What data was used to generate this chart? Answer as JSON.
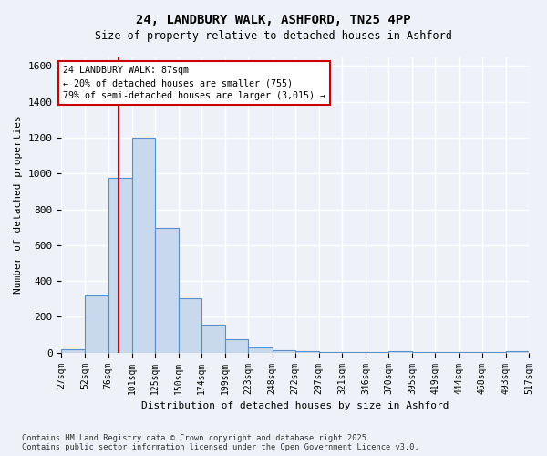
{
  "title_line1": "24, LANDBURY WALK, ASHFORD, TN25 4PP",
  "title_line2": "Size of property relative to detached houses in Ashford",
  "xlabel": "Distribution of detached houses by size in Ashford",
  "ylabel": "Number of detached properties",
  "bar_edges": [
    27,
    52,
    76,
    101,
    125,
    150,
    174,
    199,
    223,
    248,
    272,
    297,
    321,
    346,
    370,
    395,
    419,
    444,
    468,
    493,
    517
  ],
  "bar_heights": [
    20,
    320,
    975,
    1200,
    695,
    305,
    155,
    75,
    30,
    15,
    10,
    5,
    3,
    2,
    8,
    2,
    1,
    1,
    1,
    10
  ],
  "bar_color": "#c9d9ed",
  "bar_edge_color": "#5b8ec4",
  "red_line_x": 87,
  "annotation_text": "24 LANDBURY WALK: 87sqm\n← 20% of detached houses are smaller (755)\n79% of semi-detached houses are larger (3,015) →",
  "annotation_box_color": "#ffffff",
  "annotation_box_edge": "#cc0000",
  "ylim": [
    0,
    1650
  ],
  "yticks": [
    0,
    200,
    400,
    600,
    800,
    1000,
    1200,
    1400,
    1600
  ],
  "tick_labels": [
    "27sqm",
    "52sqm",
    "76sqm",
    "101sqm",
    "125sqm",
    "150sqm",
    "174sqm",
    "199sqm",
    "223sqm",
    "248sqm",
    "272sqm",
    "297sqm",
    "321sqm",
    "346sqm",
    "370sqm",
    "395sqm",
    "419sqm",
    "444sqm",
    "468sqm",
    "493sqm",
    "517sqm"
  ],
  "footer_line1": "Contains HM Land Registry data © Crown copyright and database right 2025.",
  "footer_line2": "Contains public sector information licensed under the Open Government Licence v3.0.",
  "bg_color": "#eef2f8",
  "plot_bg_color": "#eef2f8",
  "grid_color": "#ffffff"
}
